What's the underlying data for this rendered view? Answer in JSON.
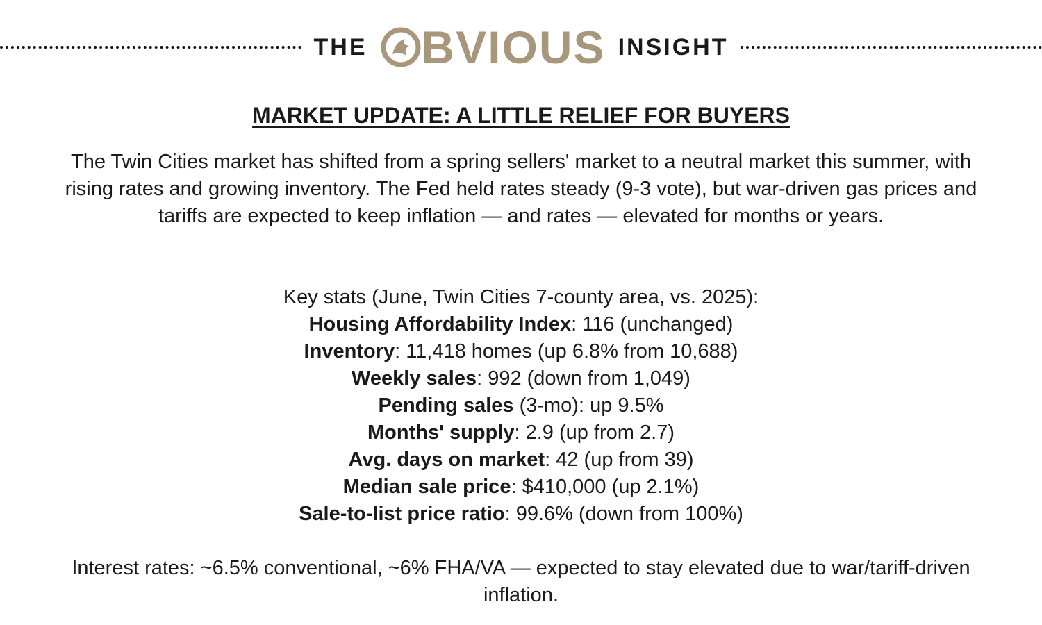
{
  "header": {
    "left": "THE",
    "brand": "BVIOUS",
    "right": "INSIGHT"
  },
  "headline": "MARKET UPDATE: A LITTLE RELIEF FOR BUYERS",
  "intro": "The Twin Cities market has shifted from a spring sellers' market to a neutral market this summer, with rising rates and growing inventory. The Fed held rates steady (9-3 vote), but war-driven gas prices and tariffs are expected to keep inflation — and rates — elevated for months or years.",
  "stats_intro": "Key stats (June, Twin Cities 7-county area, vs. 2025):",
  "stats": [
    {
      "label": "Housing Affordability Index",
      "text": ": 116 (unchanged)"
    },
    {
      "label": "Inventory",
      "text": ": 11,418 homes (up 6.8% from 10,688)"
    },
    {
      "label": "Weekly sales",
      "text": ": 992 (down from 1,049)"
    },
    {
      "label": "Pending sales",
      "text": " (3-mo): up 9.5%"
    },
    {
      "label": "Months' supply",
      "text": ": 2.9 (up from 2.7)"
    },
    {
      "label": "Avg. days on market",
      "text": ": 42 (up from 39)"
    },
    {
      "label": "Median sale price",
      "text": ": $410,000 (up 2.1%)"
    },
    {
      "label": "Sale-to-list price ratio",
      "text": ": 99.6% (down from 100%)"
    }
  ],
  "closing": "Interest rates: ~6.5% conventional, ~6% FHA/VA — expected to stay elevated due to war/tariff-driven inflation."
}
